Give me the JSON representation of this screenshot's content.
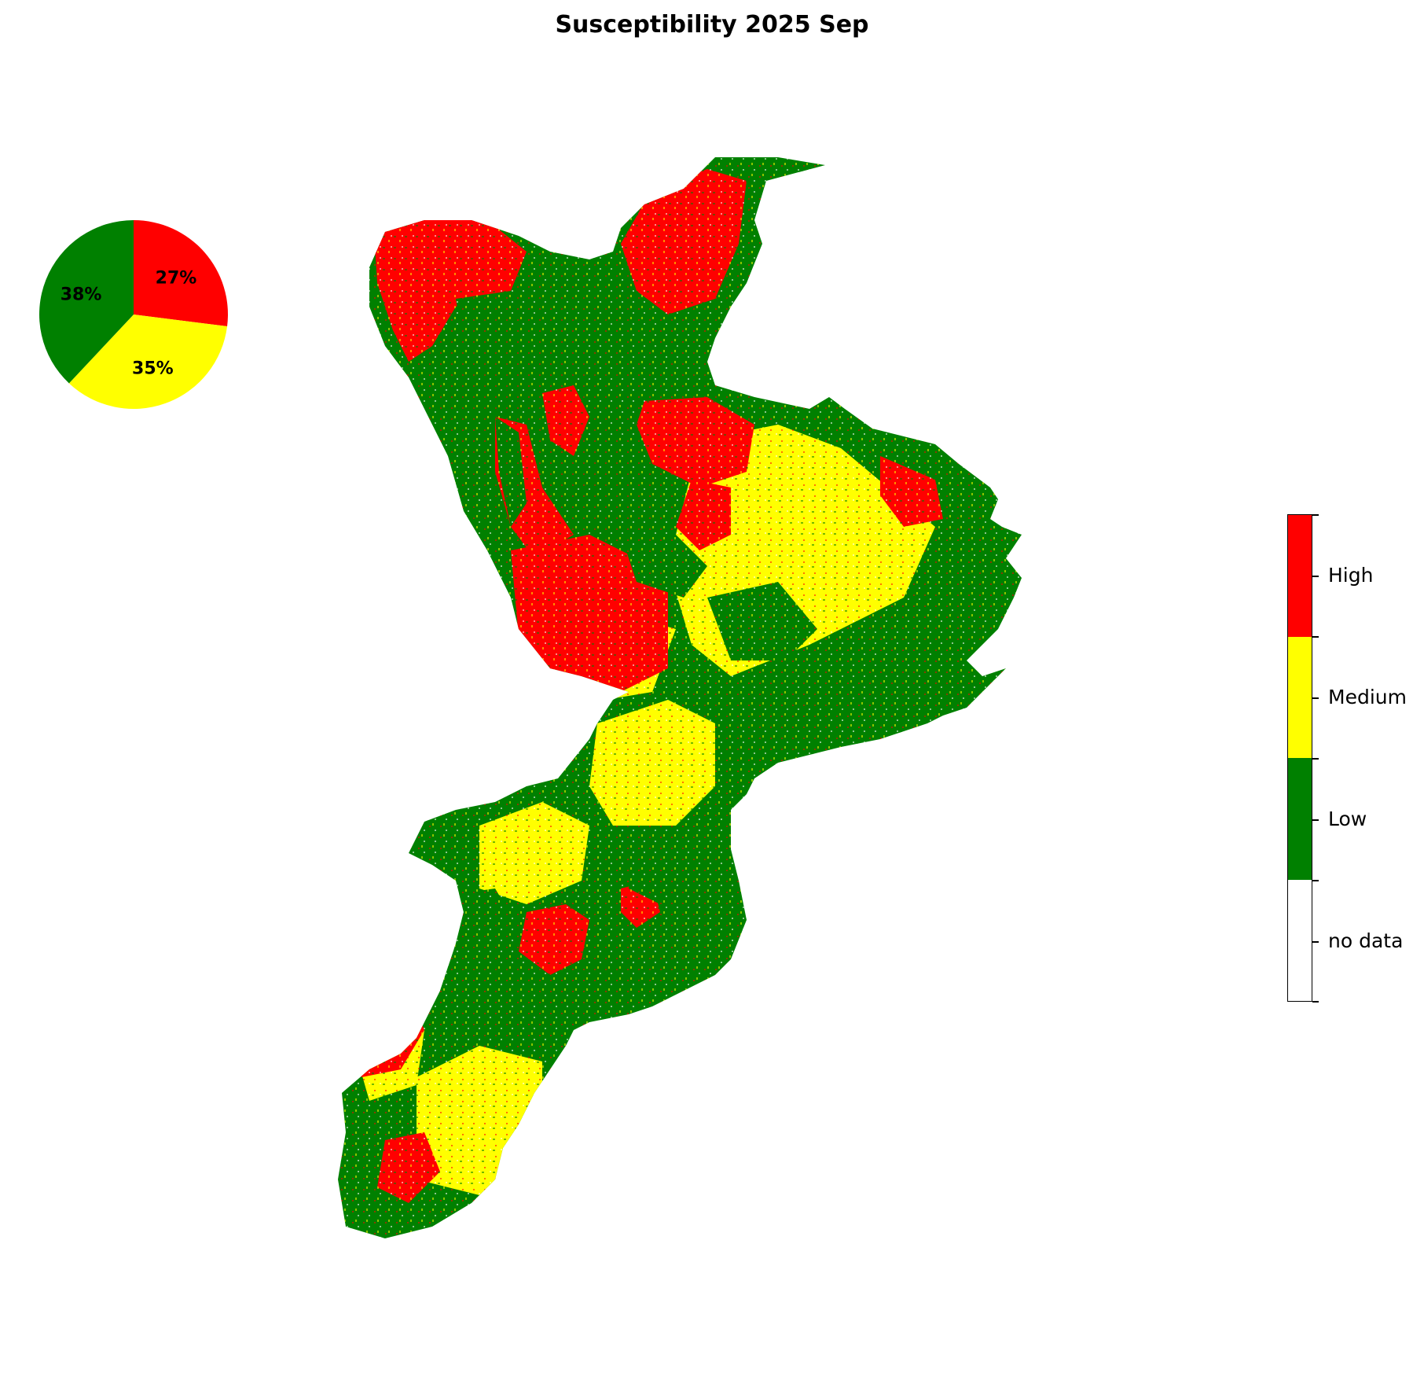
{
  "title": "Susceptibility 2025 Sep",
  "colors": {
    "high": "#ff0000",
    "medium": "#ffff00",
    "low": "#008000",
    "nodata": "#ffffff"
  },
  "chart_data": {
    "type": "pie",
    "slices": [
      {
        "category": "High",
        "value": 27,
        "label": "27%",
        "color": "#ff0000"
      },
      {
        "category": "Medium",
        "value": 35,
        "label": "35%",
        "color": "#ffff00"
      },
      {
        "category": "Low",
        "value": 38,
        "label": "38%",
        "color": "#008000"
      }
    ]
  },
  "colorbar": {
    "classes": [
      {
        "label": "High",
        "color": "#ff0000"
      },
      {
        "label": "Medium",
        "color": "#ffff00"
      },
      {
        "label": "Low",
        "color": "#008000"
      },
      {
        "label": "no data",
        "color": "#ffffff"
      }
    ]
  }
}
